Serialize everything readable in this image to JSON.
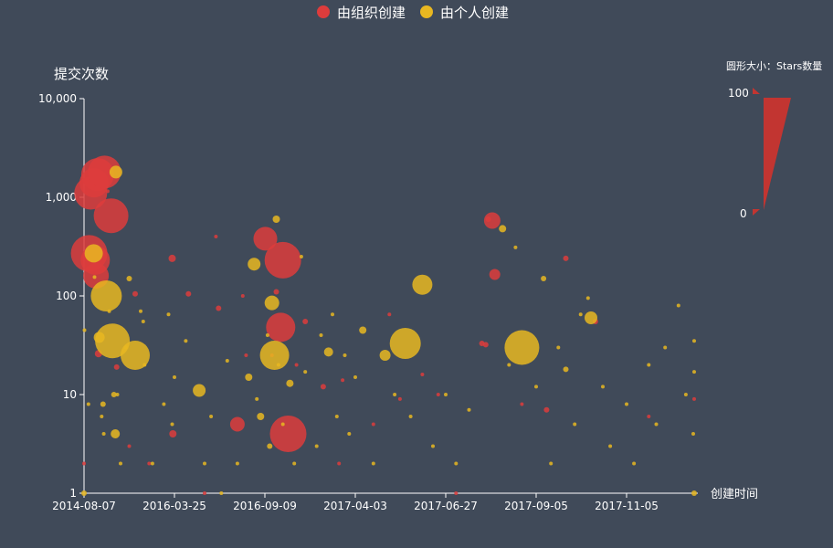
{
  "chart_data": {
    "type": "scatter",
    "title": "",
    "xlabel": "创建时间",
    "ylabel": "提交次数",
    "y_scale": "log",
    "ylim": [
      1,
      10000
    ],
    "y_ticks": [
      "1",
      "10",
      "100",
      "1,000",
      "10,000"
    ],
    "x_ticks": [
      "2014-08-07",
      "2016-03-25",
      "2016-09-09",
      "2017-04-03",
      "2017-06-27",
      "2017-09-05",
      "2017-11-05"
    ],
    "grid": false,
    "legend": {
      "placement": "top-center",
      "entries": [
        "由组织创建",
        "由个人创建"
      ]
    },
    "size_legend": {
      "title": "圆形大小：Stars数量",
      "max_label": "100",
      "min_label": "0",
      "color": "#c23531"
    },
    "series": [
      {
        "name": "由组织创建",
        "color": "#dd3c3c",
        "points": [
          {
            "x": "2014-08-07",
            "y": 2,
            "r": 2
          },
          {
            "x": "2014-09-20",
            "y": 1100,
            "r": 18
          },
          {
            "x": "2014-10-12",
            "y": 1400,
            "r": 16
          },
          {
            "x": "2014-11-05",
            "y": 1700,
            "r": 18
          },
          {
            "x": "2014-09-10",
            "y": 270,
            "r": 20
          },
          {
            "x": "2014-10-20",
            "y": 230,
            "r": 16
          },
          {
            "x": "2014-10-25",
            "y": 160,
            "r": 14
          },
          {
            "x": "2014-12-20",
            "y": 1800,
            "r": 18
          },
          {
            "x": "2015-02-01",
            "y": 650,
            "r": 19
          },
          {
            "x": "2014-11-10",
            "y": 26,
            "r": 4
          },
          {
            "x": "2015-01-10",
            "y": 1150,
            "r": 2
          },
          {
            "x": "2015-03-10",
            "y": 19,
            "r": 3
          },
          {
            "x": "2015-07-10",
            "y": 105,
            "r": 3
          },
          {
            "x": "2015-06-01",
            "y": 3,
            "r": 2
          },
          {
            "x": "2015-10-10",
            "y": 2,
            "r": 2
          },
          {
            "x": "2016-03-10",
            "y": 240,
            "r": 4
          },
          {
            "x": "2016-03-15",
            "y": 4,
            "r": 4
          },
          {
            "x": "2016-04-20",
            "y": 105,
            "r": 3
          },
          {
            "x": "2016-05-20",
            "y": 1,
            "r": 2
          },
          {
            "x": "2016-06-10",
            "y": 400,
            "r": 2
          },
          {
            "x": "2016-06-15",
            "y": 75,
            "r": 3
          },
          {
            "x": "2016-07-20",
            "y": 5,
            "r": 8
          },
          {
            "x": "2016-07-30",
            "y": 100,
            "r": 2
          },
          {
            "x": "2016-08-05",
            "y": 25,
            "r": 2
          },
          {
            "x": "2016-09-10",
            "y": 380,
            "r": 13
          },
          {
            "x": "2016-10-20",
            "y": 230,
            "r": 20
          },
          {
            "x": "2016-10-15",
            "y": 48,
            "r": 16
          },
          {
            "x": "2016-11-01",
            "y": 4,
            "r": 20
          },
          {
            "x": "2016-10-05",
            "y": 110,
            "r": 3
          },
          {
            "x": "2016-09-25",
            "y": 25,
            "r": 2
          },
          {
            "x": "2016-12-10",
            "y": 55,
            "r": 3
          },
          {
            "x": "2017-02-25",
            "y": 2,
            "r": 2
          },
          {
            "x": "2017-03-05",
            "y": 14,
            "r": 2
          },
          {
            "x": "2017-04-20",
            "y": 5,
            "r": 2
          },
          {
            "x": "2017-05-05",
            "y": 65,
            "r": 2
          },
          {
            "x": "2017-06-05",
            "y": 16,
            "r": 2
          },
          {
            "x": "2017-07-05",
            "y": 1,
            "r": 2
          },
          {
            "x": "2017-07-25",
            "y": 33,
            "r": 3
          },
          {
            "x": "2017-07-30",
            "y": 600,
            "r": 3
          },
          {
            "x": "2017-08-02",
            "y": 580,
            "r": 9
          },
          {
            "x": "2017-08-04",
            "y": 165,
            "r": 6
          },
          {
            "x": "2017-07-28",
            "y": 32,
            "r": 3
          },
          {
            "x": "2017-08-25",
            "y": 8,
            "r": 2
          },
          {
            "x": "2017-09-12",
            "y": 7,
            "r": 3
          },
          {
            "x": "2017-09-25",
            "y": 240,
            "r": 3
          },
          {
            "x": "2017-10-15",
            "y": 55,
            "r": 3
          },
          {
            "x": "2017-11-20",
            "y": 6,
            "r": 2
          },
          {
            "x": "2017-12-28",
            "y": 9,
            "r": 2
          },
          {
            "x": "2016-11-20",
            "y": 20,
            "r": 2
          },
          {
            "x": "2017-05-15",
            "y": 9,
            "r": 2
          },
          {
            "x": "2017-06-20",
            "y": 10,
            "r": 2
          },
          {
            "x": "2017-01-20",
            "y": 12,
            "r": 3
          }
        ]
      },
      {
        "name": "由个人创建",
        "color": "#e8b721",
        "points": [
          {
            "x": "2014-08-07",
            "y": 1,
            "r": 3
          },
          {
            "x": "2014-08-10",
            "y": 45,
            "r": 2
          },
          {
            "x": "2014-09-05",
            "y": 8,
            "r": 2
          },
          {
            "x": "2014-10-10",
            "y": 270,
            "r": 10
          },
          {
            "x": "2014-10-15",
            "y": 155,
            "r": 2
          },
          {
            "x": "2014-11-15",
            "y": 38,
            "r": 6
          },
          {
            "x": "2014-12-01",
            "y": 6,
            "r": 2
          },
          {
            "x": "2014-12-10",
            "y": 8,
            "r": 3
          },
          {
            "x": "2014-12-15",
            "y": 4,
            "r": 2
          },
          {
            "x": "2015-01-01",
            "y": 100,
            "r": 17
          },
          {
            "x": "2015-01-20",
            "y": 70,
            "r": 2
          },
          {
            "x": "2015-02-10",
            "y": 35,
            "r": 19
          },
          {
            "x": "2015-02-20",
            "y": 10,
            "r": 3
          },
          {
            "x": "2015-03-01",
            "y": 4,
            "r": 5
          },
          {
            "x": "2015-03-05",
            "y": 1800,
            "r": 7
          },
          {
            "x": "2015-03-15",
            "y": 10,
            "r": 2
          },
          {
            "x": "2015-04-05",
            "y": 2,
            "r": 2
          },
          {
            "x": "2015-05-10",
            "y": 30,
            "r": 2
          },
          {
            "x": "2015-06-01",
            "y": 150,
            "r": 3
          },
          {
            "x": "2015-07-10",
            "y": 25,
            "r": 16
          },
          {
            "x": "2015-08-15",
            "y": 70,
            "r": 2
          },
          {
            "x": "2015-09-01",
            "y": 55,
            "r": 2
          },
          {
            "x": "2015-09-10",
            "y": 20,
            "r": 2
          },
          {
            "x": "2015-11-01",
            "y": 2,
            "r": 2
          },
          {
            "x": "2016-01-15",
            "y": 8,
            "r": 2
          },
          {
            "x": "2016-02-15",
            "y": 65,
            "r": 2
          },
          {
            "x": "2016-03-10",
            "y": 5,
            "r": 2
          },
          {
            "x": "2016-03-25",
            "y": 15,
            "r": 2
          },
          {
            "x": "2016-04-15",
            "y": 35,
            "r": 2
          },
          {
            "x": "2016-05-10",
            "y": 11,
            "r": 7
          },
          {
            "x": "2016-05-20",
            "y": 2,
            "r": 2
          },
          {
            "x": "2016-06-01",
            "y": 6,
            "r": 2
          },
          {
            "x": "2016-06-20",
            "y": 1,
            "r": 2
          },
          {
            "x": "2016-07-01",
            "y": 22,
            "r": 2
          },
          {
            "x": "2016-07-20",
            "y": 2,
            "r": 2
          },
          {
            "x": "2016-08-10",
            "y": 15,
            "r": 4
          },
          {
            "x": "2016-08-20",
            "y": 210,
            "r": 7
          },
          {
            "x": "2016-08-25",
            "y": 9,
            "r": 2
          },
          {
            "x": "2016-09-01",
            "y": 6,
            "r": 4
          },
          {
            "x": "2016-09-15",
            "y": 40,
            "r": 2
          },
          {
            "x": "2016-09-20",
            "y": 3,
            "r": 3
          },
          {
            "x": "2016-09-25",
            "y": 85,
            "r": 8
          },
          {
            "x": "2016-10-01",
            "y": 25,
            "r": 16
          },
          {
            "x": "2016-10-05",
            "y": 600,
            "r": 4
          },
          {
            "x": "2016-10-10",
            "y": 20,
            "r": 2
          },
          {
            "x": "2016-10-20",
            "y": 5,
            "r": 2
          },
          {
            "x": "2016-11-05",
            "y": 13,
            "r": 4
          },
          {
            "x": "2016-11-15",
            "y": 2,
            "r": 2
          },
          {
            "x": "2016-12-01",
            "y": 250,
            "r": 2
          },
          {
            "x": "2016-12-10",
            "y": 17,
            "r": 2
          },
          {
            "x": "2017-01-05",
            "y": 3,
            "r": 2
          },
          {
            "x": "2017-01-15",
            "y": 40,
            "r": 2
          },
          {
            "x": "2017-02-01",
            "y": 27,
            "r": 5
          },
          {
            "x": "2017-02-10",
            "y": 65,
            "r": 2
          },
          {
            "x": "2017-02-20",
            "y": 6,
            "r": 2
          },
          {
            "x": "2017-03-10",
            "y": 25,
            "r": 2
          },
          {
            "x": "2017-03-20",
            "y": 4,
            "r": 2
          },
          {
            "x": "2017-04-03",
            "y": 15,
            "r": 2
          },
          {
            "x": "2017-04-10",
            "y": 45,
            "r": 4
          },
          {
            "x": "2017-04-20",
            "y": 2,
            "r": 2
          },
          {
            "x": "2017-05-01",
            "y": 25,
            "r": 6
          },
          {
            "x": "2017-05-10",
            "y": 10,
            "r": 2
          },
          {
            "x": "2017-05-20",
            "y": 33,
            "r": 17
          },
          {
            "x": "2017-05-25",
            "y": 6,
            "r": 2
          },
          {
            "x": "2017-06-05",
            "y": 130,
            "r": 11
          },
          {
            "x": "2017-06-15",
            "y": 3,
            "r": 2
          },
          {
            "x": "2017-06-27",
            "y": 10,
            "r": 2
          },
          {
            "x": "2017-07-05",
            "y": 2,
            "r": 2
          },
          {
            "x": "2017-07-15",
            "y": 7,
            "r": 2
          },
          {
            "x": "2017-08-10",
            "y": 480,
            "r": 4
          },
          {
            "x": "2017-08-15",
            "y": 20,
            "r": 2
          },
          {
            "x": "2017-08-20",
            "y": 310,
            "r": 2
          },
          {
            "x": "2017-08-25",
            "y": 30,
            "r": 19
          },
          {
            "x": "2017-09-05",
            "y": 12,
            "r": 2
          },
          {
            "x": "2017-09-10",
            "y": 150,
            "r": 3
          },
          {
            "x": "2017-09-15",
            "y": 2,
            "r": 2
          },
          {
            "x": "2017-09-20",
            "y": 30,
            "r": 2
          },
          {
            "x": "2017-09-25",
            "y": 18,
            "r": 3
          },
          {
            "x": "2017-10-01",
            "y": 5,
            "r": 2
          },
          {
            "x": "2017-10-05",
            "y": 65,
            "r": 2
          },
          {
            "x": "2017-10-10",
            "y": 95,
            "r": 2
          },
          {
            "x": "2017-10-12",
            "y": 60,
            "r": 7
          },
          {
            "x": "2017-10-20",
            "y": 12,
            "r": 2
          },
          {
            "x": "2017-10-25",
            "y": 3,
            "r": 2
          },
          {
            "x": "2017-11-05",
            "y": 8,
            "r": 2
          },
          {
            "x": "2017-11-10",
            "y": 2,
            "r": 2
          },
          {
            "x": "2017-11-20",
            "y": 20,
            "r": 2
          },
          {
            "x": "2017-11-25",
            "y": 5,
            "r": 2
          },
          {
            "x": "2017-12-01",
            "y": 30,
            "r": 2
          },
          {
            "x": "2017-12-10",
            "y": 80,
            "r": 2
          },
          {
            "x": "2017-12-15",
            "y": 10,
            "r": 2
          },
          {
            "x": "2017-12-20",
            "y": 4,
            "r": 2
          },
          {
            "x": "2017-12-25",
            "y": 35,
            "r": 2
          },
          {
            "x": "2017-12-30",
            "y": 17,
            "r": 2
          },
          {
            "x": "2017-12-30",
            "y": 1,
            "r": 3
          }
        ]
      }
    ]
  }
}
